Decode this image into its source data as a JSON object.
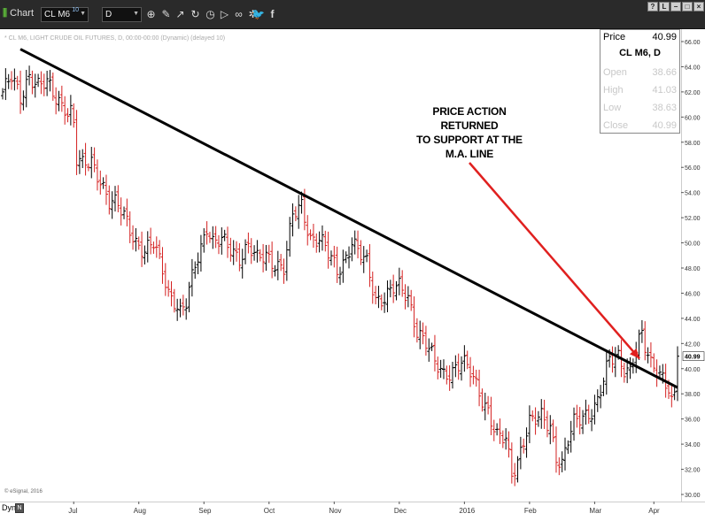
{
  "toolbar": {
    "logo_text": "Chart",
    "symbol": "CL M6",
    "symbol_superscript": "10",
    "interval": "D",
    "icons": [
      "zoom-icon",
      "pencil-icon",
      "cursor-icon",
      "refresh-icon",
      "clock-icon",
      "play-icon",
      "link-icon",
      "gear-icon",
      "twitter-icon",
      "facebook-icon"
    ],
    "window_buttons": [
      "?",
      "L",
      "−",
      "□",
      "×"
    ]
  },
  "chart_header_note": "* CL M6, LIGHT CRUDE OIL FUTURES, D, 00:00-00:00 (Dynamic) (delayed 10)",
  "credit": "© eSignal, 2016",
  "info_box": {
    "price_label": "Price",
    "price_value": "40.99",
    "symbol_title": "CL M6, D",
    "rows": [
      {
        "label": "Open",
        "value": "38.66"
      },
      {
        "label": "High",
        "value": "41.03"
      },
      {
        "label": "Low",
        "value": "38.63"
      },
      {
        "label": "Close",
        "value": "40.99"
      }
    ]
  },
  "annotation": {
    "lines": [
      "PRICE ACTION RETURNED",
      "TO SUPPORT AT THE",
      "M.A. LINE"
    ],
    "arrow_color": "#e0201f"
  },
  "bottom_bar": {
    "mode_label": "Dyn",
    "mode_button": "N"
  },
  "colors": {
    "up_bar": "#000000",
    "down_bar": "#d42020",
    "trendline": "#000000",
    "background": "#ffffff"
  },
  "chart_data": {
    "type": "ohlc",
    "title": "",
    "ylim": [
      30,
      66
    ],
    "y_ticks": [
      "66.00",
      "64.00",
      "62.00",
      "60.00",
      "58.00",
      "56.00",
      "54.00",
      "52.00",
      "50.00",
      "48.00",
      "46.00",
      "44.00",
      "42.00",
      "40.00",
      "38.00",
      "36.00",
      "34.00",
      "32.00",
      "30.00"
    ],
    "last_price_label": "40.99",
    "x_labels": [
      "Jul",
      "Aug",
      "Sep",
      "Oct",
      "Nov",
      "Dec",
      "2016",
      "Feb",
      "Mar",
      "Apr"
    ],
    "x_label_index": [
      24,
      46,
      68,
      90,
      112,
      134,
      156,
      178,
      200,
      220
    ],
    "trendline": {
      "from": {
        "index": 6,
        "price": 65.4
      },
      "to": {
        "index": 228,
        "price": 38.5
      }
    },
    "price_path": [
      [
        0,
        62
      ],
      [
        3,
        63
      ],
      [
        6,
        61.5
      ],
      [
        9,
        63.5
      ],
      [
        12,
        62.5
      ],
      [
        15,
        62.5
      ],
      [
        18,
        61.5
      ],
      [
        21,
        61
      ],
      [
        22,
        60.5
      ],
      [
        23,
        60.5
      ],
      [
        24,
        59.5
      ],
      [
        25,
        56.5
      ],
      [
        27,
        56
      ],
      [
        30,
        56.5
      ],
      [
        33,
        55.2
      ],
      [
        36,
        53.2
      ],
      [
        39,
        52.8
      ],
      [
        42,
        51.8
      ],
      [
        45,
        50.2
      ],
      [
        48,
        49.2
      ],
      [
        51,
        49.8
      ],
      [
        54,
        48
      ],
      [
        56,
        46.2
      ],
      [
        58,
        45.5
      ],
      [
        60,
        44.3
      ],
      [
        62,
        45
      ],
      [
        63,
        46
      ],
      [
        65,
        48.3
      ],
      [
        67,
        49.8
      ],
      [
        69,
        51.5
      ],
      [
        71,
        50
      ],
      [
        74,
        50
      ],
      [
        77,
        49.5
      ],
      [
        80,
        49
      ],
      [
        83,
        49.8
      ],
      [
        86,
        48.5
      ],
      [
        89,
        49
      ],
      [
        92,
        48.5
      ],
      [
        95,
        48
      ],
      [
        98,
        52
      ],
      [
        101,
        53
      ],
      [
        104,
        50.5
      ],
      [
        107,
        50.3
      ],
      [
        110,
        49
      ],
      [
        113,
        47.8
      ],
      [
        116,
        49
      ],
      [
        118,
        50.2
      ],
      [
        120,
        49.2
      ],
      [
        123,
        48.2
      ],
      [
        126,
        45.6
      ],
      [
        129,
        45.8
      ],
      [
        132,
        46.3
      ],
      [
        134,
        46.3
      ],
      [
        137,
        45.7
      ],
      [
        140,
        43.2
      ],
      [
        143,
        42
      ],
      [
        146,
        40.3
      ],
      [
        149,
        39.6
      ],
      [
        152,
        40
      ],
      [
        155,
        40.5
      ],
      [
        158,
        39.6
      ],
      [
        161,
        38.2
      ],
      [
        164,
        36.8
      ],
      [
        167,
        34.5
      ],
      [
        170,
        34.2
      ],
      [
        172,
        31.6
      ],
      [
        174,
        32.8
      ],
      [
        176,
        34.5
      ],
      [
        178,
        35.8
      ],
      [
        180,
        35.8
      ],
      [
        182,
        36
      ],
      [
        185,
        35.5
      ],
      [
        187,
        33.2
      ],
      [
        189,
        32.5
      ],
      [
        191,
        34.2
      ],
      [
        193,
        35.5
      ],
      [
        196,
        36.2
      ],
      [
        199,
        36.8
      ],
      [
        201,
        37.5
      ],
      [
        203,
        39
      ],
      [
        205,
        40.5
      ],
      [
        208,
        41
      ],
      [
        210,
        40.2
      ],
      [
        212,
        40
      ],
      [
        214,
        41.5
      ],
      [
        216,
        42.5
      ],
      [
        217,
        41.5
      ],
      [
        219,
        40.3
      ],
      [
        221,
        40.2
      ],
      [
        223,
        39.5
      ],
      [
        225,
        38.5
      ],
      [
        226,
        37.2
      ],
      [
        227,
        37.6
      ],
      [
        228,
        40.99
      ]
    ]
  }
}
